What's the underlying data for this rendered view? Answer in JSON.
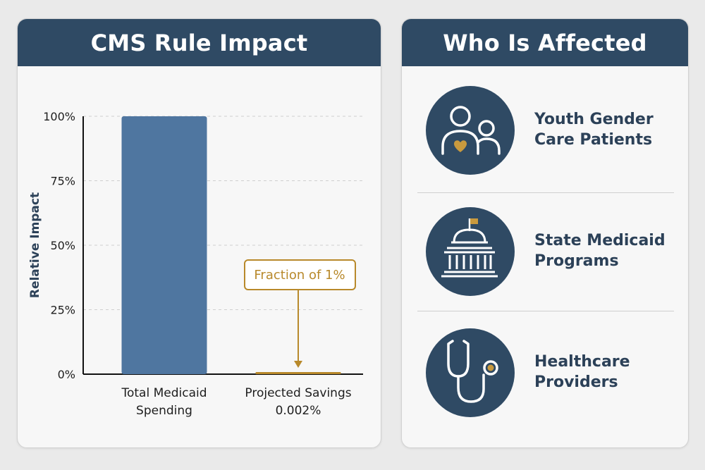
{
  "colors": {
    "header": "#2f4a64",
    "bar_primary": "#4f76a0",
    "accent_gold": "#b8892b",
    "icon_circle": "#2f4a64",
    "label_text": "#2c4158"
  },
  "left_panel": {
    "title": "CMS Rule Impact"
  },
  "chart_data": {
    "type": "bar",
    "ylabel": "Relative Impact",
    "xlabel": "",
    "ylim": [
      0,
      100
    ],
    "yticks": [
      0,
      25,
      50,
      75,
      100
    ],
    "ytick_labels": [
      "0%",
      "25%",
      "50%",
      "75%",
      "100%"
    ],
    "grid": true,
    "categories": [
      "Total Medicaid\nSpending",
      "Projected Savings\n0.002%"
    ],
    "values": [
      100,
      0.002
    ],
    "bar_colors": [
      "#4f76a0",
      "#b8892b"
    ],
    "annotation": {
      "text": "Fraction of 1%",
      "target_index": 1
    }
  },
  "right_panel": {
    "title": "Who Is Affected",
    "items": [
      {
        "icon": "family-icon",
        "label": "Youth Gender\nCare Patients"
      },
      {
        "icon": "capitol-icon",
        "label": "State Medicaid\nPrograms"
      },
      {
        "icon": "stethoscope-icon",
        "label": "Healthcare\nProviders"
      }
    ]
  }
}
